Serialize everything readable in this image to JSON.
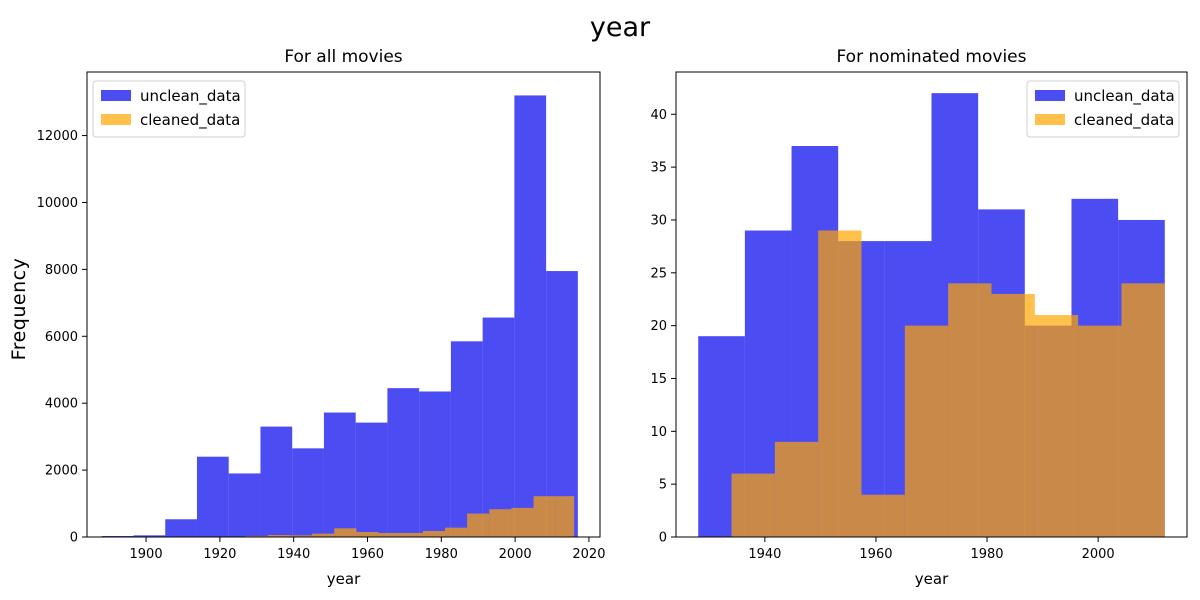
{
  "figure": {
    "title": "year",
    "ylabel": "Frequency"
  },
  "chart_data": [
    {
      "type": "histogram",
      "title": "For all movies",
      "xlabel": "year",
      "ylabel": "Frequency",
      "xlim": [
        1884,
        2023
      ],
      "ylim": [
        0,
        13900
      ],
      "xticks": [
        1900,
        1920,
        1940,
        1960,
        1980,
        2000,
        2020
      ],
      "yticks": [
        0,
        2000,
        4000,
        6000,
        8000,
        10000,
        12000
      ],
      "legend_position": "top-left",
      "series": [
        {
          "name": "unclean_data",
          "color": "#0000ee",
          "opacity": 0.7,
          "bins": [
            [
              1888.0,
              1896.6,
              30
            ],
            [
              1896.6,
              1905.2,
              50
            ],
            [
              1905.2,
              1913.8,
              530
            ],
            [
              1913.8,
              1922.4,
              2400
            ],
            [
              1922.4,
              1931.0,
              1900
            ],
            [
              1931.0,
              1939.6,
              3300
            ],
            [
              1939.6,
              1948.2,
              2650
            ],
            [
              1948.2,
              1956.8,
              3720
            ],
            [
              1956.8,
              1965.4,
              3420
            ],
            [
              1965.4,
              1974.0,
              4450
            ],
            [
              1974.0,
              1982.6,
              4350
            ],
            [
              1982.6,
              1991.2,
              5850
            ],
            [
              1991.2,
              1999.8,
              6560
            ],
            [
              1999.8,
              2008.4,
              13200
            ],
            [
              2008.4,
              2017.0,
              7950
            ]
          ]
        },
        {
          "name": "cleaned_data",
          "color": "#ffa500",
          "opacity": 0.7,
          "bins": [
            [
              1927.0,
              1933.0,
              30
            ],
            [
              1933.0,
              1939.0,
              60
            ],
            [
              1939.0,
              1945.0,
              50
            ],
            [
              1945.0,
              1951.0,
              100
            ],
            [
              1951.0,
              1957.0,
              260
            ],
            [
              1957.0,
              1963.0,
              150
            ],
            [
              1963.0,
              1969.0,
              120
            ],
            [
              1969.0,
              1975.0,
              120
            ],
            [
              1975.0,
              1981.0,
              180
            ],
            [
              1981.0,
              1987.0,
              280
            ],
            [
              1987.0,
              1993.0,
              700
            ],
            [
              1993.0,
              1999.0,
              830
            ],
            [
              1999.0,
              2005.0,
              870
            ],
            [
              2005.0,
              2011.0,
              1220
            ],
            [
              2011.0,
              2016.0,
              1220
            ]
          ]
        }
      ]
    },
    {
      "type": "histogram",
      "title": "For nominated movies",
      "xlabel": "year",
      "xlim": [
        1924,
        2016
      ],
      "ylim": [
        0,
        44
      ],
      "xticks": [
        1940,
        1960,
        1980,
        2000
      ],
      "yticks": [
        0,
        5,
        10,
        15,
        20,
        25,
        30,
        35,
        40
      ],
      "legend_position": "top-right",
      "series": [
        {
          "name": "unclean_data",
          "color": "#0000ee",
          "opacity": 0.7,
          "bins": [
            [
              1928.0,
              1936.4,
              19
            ],
            [
              1936.4,
              1944.8,
              29
            ],
            [
              1944.8,
              1953.2,
              37
            ],
            [
              1953.2,
              1961.6,
              28
            ],
            [
              1961.6,
              1970.0,
              28
            ],
            [
              1970.0,
              1978.4,
              42
            ],
            [
              1978.4,
              1986.8,
              31
            ],
            [
              1986.8,
              1995.2,
              20
            ],
            [
              1995.2,
              2003.6,
              32
            ],
            [
              2003.6,
              2012.0,
              30
            ]
          ]
        },
        {
          "name": "cleaned_data",
          "color": "#ffa500",
          "opacity": 0.7,
          "bins": [
            [
              1934.0,
              1941.8,
              6
            ],
            [
              1941.8,
              1949.6,
              9
            ],
            [
              1949.6,
              1957.4,
              29
            ],
            [
              1957.4,
              1965.2,
              4
            ],
            [
              1965.2,
              1973.0,
              20
            ],
            [
              1973.0,
              1980.8,
              24
            ],
            [
              1980.8,
              1988.6,
              23
            ],
            [
              1988.6,
              1996.4,
              21
            ],
            [
              1996.4,
              2004.2,
              20
            ],
            [
              2004.2,
              2012.0,
              24
            ]
          ]
        }
      ]
    }
  ]
}
